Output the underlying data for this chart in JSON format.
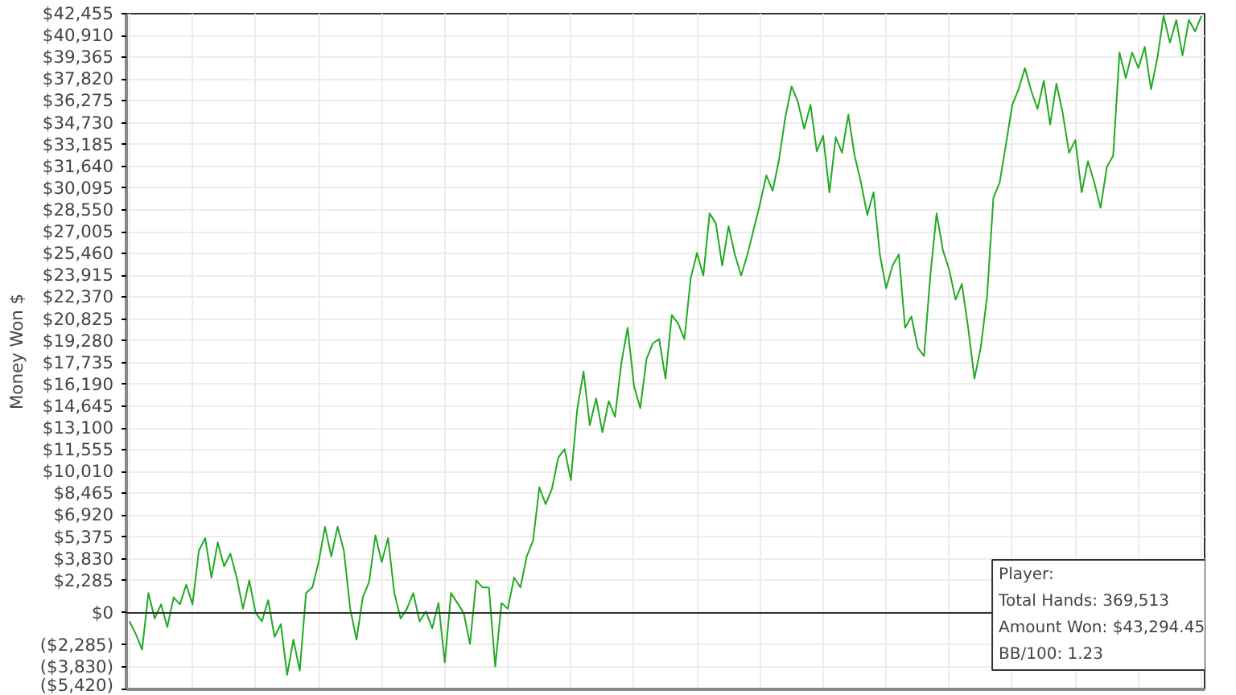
{
  "chart_data": {
    "type": "line",
    "ylabel": "Money Won $",
    "annotations": [
      "Player:",
      "Total Hands: 369,513",
      "Amount Won: $43,294.45",
      "BB/100: 1.23"
    ],
    "categories": [
      null,
      null,
      null,
      null,
      null,
      null,
      null,
      null,
      null,
      null,
      null,
      null,
      null,
      null,
      null,
      null,
      null,
      null,
      null,
      null,
      null,
      null,
      null,
      null,
      null,
      null,
      null,
      null,
      null,
      null,
      null,
      null,
      null,
      null,
      null,
      null,
      null,
      null,
      null,
      null,
      null,
      null,
      null,
      null,
      null,
      null,
      null,
      null,
      null,
      null,
      null,
      null,
      null,
      null,
      null,
      null,
      null,
      null,
      null,
      null,
      null,
      null,
      null,
      null,
      null,
      null,
      null,
      null,
      null,
      null,
      null,
      null,
      null,
      null,
      null,
      null,
      null,
      null,
      null,
      null,
      null,
      null,
      null,
      null,
      null,
      null,
      null,
      null,
      null,
      null,
      null,
      null,
      null,
      null,
      null,
      null,
      null,
      null,
      null,
      null,
      null,
      null,
      null,
      null,
      null,
      null,
      null,
      null,
      null,
      null,
      null,
      null,
      null,
      null,
      null,
      null,
      null,
      null,
      null,
      null,
      null,
      null,
      null,
      null,
      null,
      null,
      null,
      null,
      null,
      null,
      null,
      null,
      null,
      null,
      null,
      null,
      null,
      null,
      null,
      null,
      null,
      null,
      null,
      null,
      null,
      null,
      null,
      null,
      null,
      null,
      null,
      null,
      null,
      null,
      null,
      null,
      null,
      null,
      null,
      null,
      null,
      null,
      null,
      null,
      null,
      null,
      null,
      null,
      null,
      null,
      null
    ],
    "ylim": [
      -5420,
      42455
    ],
    "yticks": [
      {
        "value": -5420,
        "label": "($5,420)"
      },
      {
        "value": -3830,
        "label": "($3,830)"
      },
      {
        "value": -2285,
        "label": "($2,285)"
      },
      {
        "value": 0,
        "label": "$0"
      },
      {
        "value": 2285,
        "label": "$2,285"
      },
      {
        "value": 3830,
        "label": "$3,830"
      },
      {
        "value": 5375,
        "label": "$5,375"
      },
      {
        "value": 6920,
        "label": "$6,920"
      },
      {
        "value": 8465,
        "label": "$8,465"
      },
      {
        "value": 10010,
        "label": "$10,010"
      },
      {
        "value": 11555,
        "label": "$11,555"
      },
      {
        "value": 13100,
        "label": "$13,100"
      },
      {
        "value": 14645,
        "label": "$14,645"
      },
      {
        "value": 16190,
        "label": "$16,190"
      },
      {
        "value": 17735,
        "label": "$17,735"
      },
      {
        "value": 19280,
        "label": "$19,280"
      },
      {
        "value": 20825,
        "label": "$20,825"
      },
      {
        "value": 22370,
        "label": "$22,370"
      },
      {
        "value": 23915,
        "label": "$23,915"
      },
      {
        "value": 25460,
        "label": "$25,460"
      },
      {
        "value": 27005,
        "label": "$27,005"
      },
      {
        "value": 28550,
        "label": "$28,550"
      },
      {
        "value": 30095,
        "label": "$30,095"
      },
      {
        "value": 31640,
        "label": "$31,640"
      },
      {
        "value": 33185,
        "label": "$33,185"
      },
      {
        "value": 34730,
        "label": "$34,730"
      },
      {
        "value": 36275,
        "label": "$36,275"
      },
      {
        "value": 37820,
        "label": "$37,820"
      },
      {
        "value": 39365,
        "label": "$39,365"
      },
      {
        "value": 40910,
        "label": "$40,910"
      },
      {
        "value": 42455,
        "label": "$42,455"
      }
    ],
    "grid": true,
    "line_style": "solid",
    "ref_lines": [
      {
        "axis": "y",
        "value": 0,
        "color": "#333333"
      }
    ],
    "series": [
      {
        "color": "#22aa22",
        "values": [
          -600,
          -1500,
          -2600,
          1400,
          -400,
          600,
          -1000,
          1100,
          600,
          2000,
          600,
          4400,
          5300,
          2500,
          5000,
          3300,
          4200,
          2500,
          300,
          2300,
          0,
          -600,
          900,
          -1700,
          -800,
          -4400,
          -1900,
          -4100,
          1400,
          1800,
          3600,
          6100,
          4000,
          6100,
          4400,
          300,
          -1900,
          1100,
          2200,
          5500,
          3600,
          5300,
          1400,
          -400,
          300,
          1400,
          -600,
          100,
          -1100,
          700,
          -3500,
          1400,
          700,
          0,
          -2200,
          2300,
          1800,
          1800,
          -3800,
          700,
          300,
          2500,
          1800,
          4000,
          5100,
          8900,
          7700,
          8800,
          11000,
          11600,
          9400,
          14400,
          17100,
          13300,
          15200,
          12800,
          15000,
          13900,
          17700,
          20200,
          16100,
          14500,
          18000,
          19100,
          19400,
          16600,
          21100,
          20500,
          19400,
          23700,
          25500,
          23900,
          28300,
          27600,
          24600,
          27400,
          25400,
          23900,
          25400,
          27200,
          29000,
          31000,
          29900,
          32100,
          35100,
          37300,
          36200,
          34300,
          36000,
          32700,
          33800,
          29800,
          33700,
          32600,
          35300,
          32400,
          30500,
          28200,
          29800,
          25400,
          23000,
          24600,
          25400,
          20200,
          21000,
          18800,
          18200,
          23900,
          28300,
          25700,
          24300,
          22200,
          23300,
          20200,
          16600,
          18800,
          22400,
          29400,
          30500,
          33200,
          36000,
          37100,
          38600,
          37000,
          35700,
          37700,
          34600,
          37500,
          35400,
          32600,
          33500,
          29800,
          32000,
          30500,
          28700,
          31600,
          32400,
          39700,
          37900,
          39700,
          38600,
          40100,
          37100,
          39300,
          42300,
          40400,
          42000,
          39500,
          42000,
          41200,
          42300
        ]
      }
    ]
  }
}
